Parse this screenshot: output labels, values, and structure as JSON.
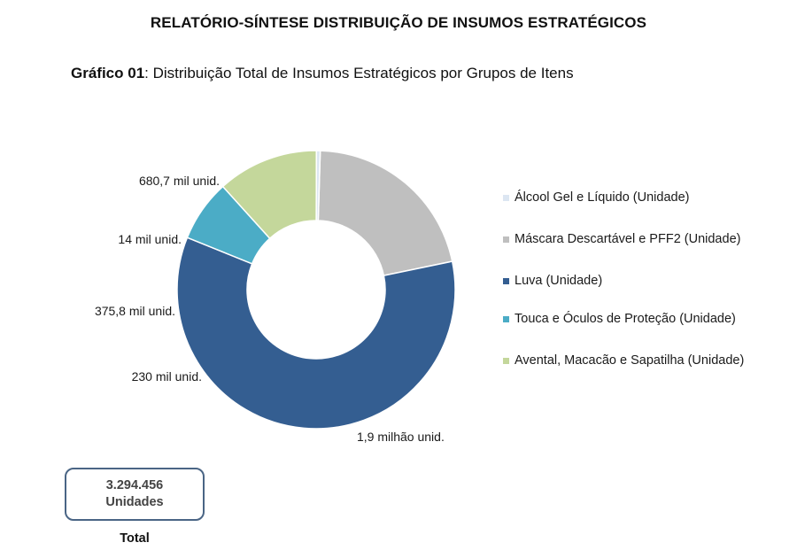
{
  "report": {
    "title": "RELATÓRIO-SÍNTESE DISTRIBUIÇÃO DE INSUMOS ESTRATÉGICOS",
    "caption_prefix": "Gráfico 01",
    "caption_text": ": Distribuição Total de Insumos Estratégicos por Grupos de Itens"
  },
  "chart_data": {
    "type": "pie",
    "variant": "donut",
    "title": "Distribuição Total de Insumos Estratégicos por Grupos de Itens",
    "legend_position": "right",
    "slices": [
      {
        "name": "Máscara Descartável e PFF2 (Unidade)",
        "value": 680.7,
        "unit": "mil unid.",
        "label": "680,7 mil unid.",
        "color": "#bfbfbf"
      },
      {
        "name": "Luva (Unidade)",
        "value": 1900,
        "unit": "mil unid.",
        "label": "1,9 milhão unid.",
        "color": "#345e91"
      },
      {
        "name": "Touca e Óculos de Proteção (Unidade)",
        "value": 230,
        "unit": "mil unid.",
        "label": "230 mil unid.",
        "color": "#4bacc6"
      },
      {
        "name": "Avental, Macacão e Sapatilha (Unidade)",
        "value": 375.8,
        "unit": "mil unid.",
        "label": "375,8 mil unid.",
        "color": "#c4d79b"
      },
      {
        "name": "Álcool Gel e Líquido (Unidade)",
        "value": 14,
        "unit": "mil unid.",
        "label": "14 mil unid.",
        "color": "#dce6f2"
      }
    ],
    "legend": [
      {
        "label": "Álcool Gel e Líquido (Unidade)",
        "color": "#dce6f2"
      },
      {
        "label": "Máscara Descartável e PFF2 (Unidade)",
        "color": "#bfbfbf"
      },
      {
        "label": "Luva (Unidade)",
        "color": "#345e91"
      },
      {
        "label": "Touca e Óculos de Proteção (Unidade)",
        "color": "#4bacc6"
      },
      {
        "label": "Avental, Macacão e Sapatilha (Unidade)",
        "color": "#c4d79b"
      }
    ]
  },
  "total": {
    "value": "3.294.456",
    "unit": "Unidades",
    "label": "Total",
    "border_color": "#4a6585"
  }
}
